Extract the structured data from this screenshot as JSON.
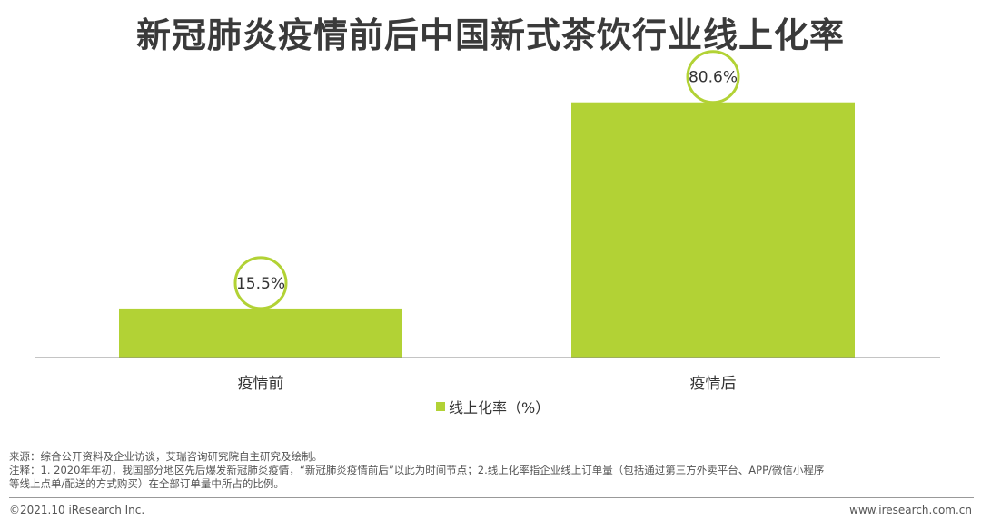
{
  "title": "新冠肺炎疫情前后中国新式茶饮行业线上化率",
  "colors": {
    "bar": "#b2d235",
    "circle": "#b2d235",
    "axis": "#888888"
  },
  "chart_data": {
    "type": "bar",
    "categories": [
      "疫情前",
      "疫情后"
    ],
    "series": [
      {
        "name": "线上化率（%）",
        "values": [
          15.5,
          80.6
        ]
      }
    ],
    "data_labels": [
      "15.5%",
      "80.6%"
    ],
    "ylim": [
      0,
      100
    ],
    "grid": false,
    "legend_position": "bottom"
  },
  "legend": {
    "label": "线上化率（%）"
  },
  "notes": {
    "source": "来源：综合公开资料及企业访谈，艾瑞咨询研究院自主研究及绘制。",
    "note_line1": "注释：1. 2020年年初，我国部分地区先后爆发新冠肺炎疫情，“新冠肺炎疫情前后”以此为时间节点；2.线上化率指企业线上订单量（包括通过第三方外卖平台、APP/微信小程序",
    "note_line2": "等线上点单/配送的方式购买）在全部订单量中所占的比例。"
  },
  "footer": {
    "copyright": "©2021.10 iResearch Inc.",
    "website": "www.iresearch.com.cn"
  }
}
